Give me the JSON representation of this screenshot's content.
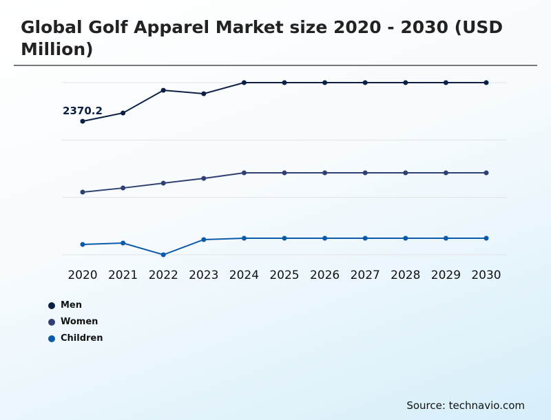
{
  "chart_data": {
    "type": "line",
    "title": "Global Golf Apparel Market size 2020 - 2030 (USD Million)",
    "categories": [
      "2020",
      "2021",
      "2022",
      "2023",
      "2024",
      "2025",
      "2026",
      "2027",
      "2028",
      "2029",
      "2030"
    ],
    "series": [
      {
        "name": "Men",
        "color": "#0b1f45",
        "values": [
          2370.2,
          2517,
          2920,
          2859,
          3056,
          3056,
          3056,
          3056,
          3056,
          3056,
          3056
        ]
      },
      {
        "name": "Women",
        "color": "#2e3f72",
        "values": [
          1112,
          1185,
          1271,
          1356,
          1454,
          1454,
          1454,
          1454,
          1454,
          1454,
          1454
        ]
      },
      {
        "name": "Children",
        "color": "#0b5aa8",
        "values": [
          183,
          208,
          0,
          269,
          293,
          293,
          293,
          293,
          293,
          293,
          293
        ]
      }
    ],
    "data_labels": [
      {
        "series": "Men",
        "category": "2020",
        "text": "2370.2"
      }
    ],
    "ylim": [
      0,
      3056
    ],
    "grid": true,
    "legend_position": "bottom-left",
    "source": "Source: technavio.com"
  }
}
